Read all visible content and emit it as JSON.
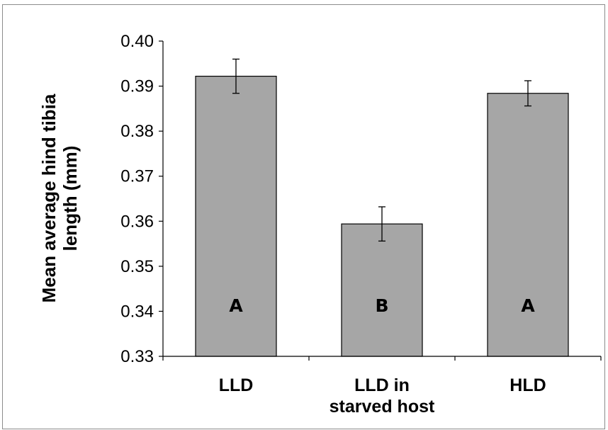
{
  "chart_data": {
    "type": "bar",
    "title": "",
    "ylabel_lines": [
      "Mean average hind tibia",
      "length (mm)"
    ],
    "xlabel": "",
    "categories": [
      [
        "LLD"
      ],
      [
        "LLD in",
        "starved host"
      ],
      [
        "HLD"
      ]
    ],
    "values": [
      0.3922,
      0.3594,
      0.3884
    ],
    "error": [
      0.0038,
      0.0038,
      0.0028
    ],
    "significance_letters": [
      "A",
      "B",
      "A"
    ],
    "ylim": [
      0.33,
      0.4
    ],
    "yticks": [
      "0.33",
      "0.34",
      "0.35",
      "0.36",
      "0.37",
      "0.38",
      "0.39",
      "0.40"
    ],
    "grid": false,
    "legend": "none",
    "bar_color": "#a6a6a6",
    "bar_edge_color": "#000000"
  }
}
